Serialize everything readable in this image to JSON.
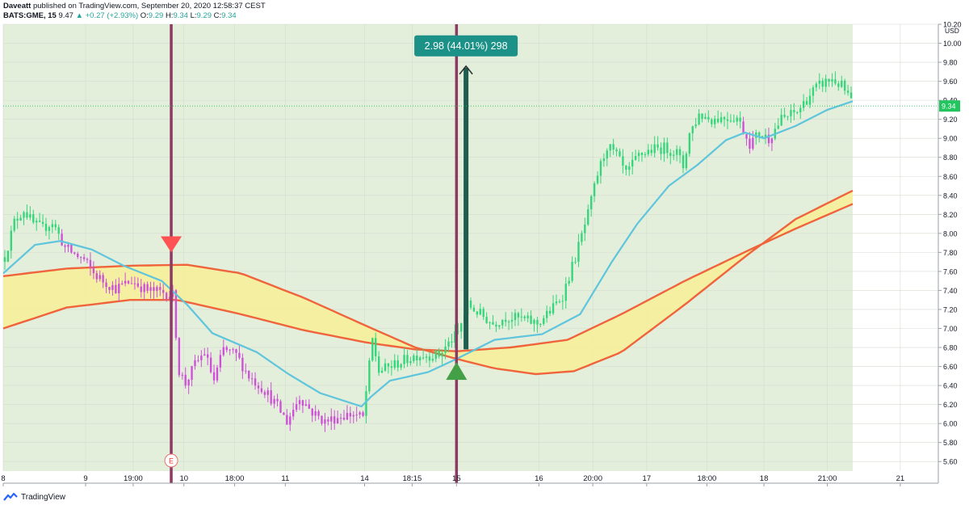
{
  "header": {
    "line1_user": "Daveatt",
    "line1_rest": "published on TradingView.com, September 20, 2020 12:58:37 CEST",
    "symbol": "BATS:GME, 15",
    "last": "9.47",
    "change": "▲ +0.27 (+2.93%)",
    "o_label": "O:",
    "o_value": "9.29",
    "h_label": "H:",
    "h_value": "9.34",
    "l_label": "L:",
    "l_value": "9.29",
    "c_label": "C:",
    "c_value": "9.34"
  },
  "footer": {
    "brand": "TradingView"
  },
  "colors": {
    "plot_bg": "#e3eedb",
    "band_fill": "#f6ee9b",
    "band_line": "#f0643c",
    "ema": "#5ec5dc",
    "bull": "#33d67a",
    "bear": "#cf4fd9",
    "vline": "#8b3a62",
    "sell_marker": "#ff5252",
    "buy_marker": "#43a047",
    "measure_bg": "#1b9187",
    "measure_arrow": "#1f5e4f",
    "price_tag": "#22c55e"
  },
  "chart_data": {
    "type": "candlestick",
    "title": "",
    "currency_label": "USD",
    "ylim": [
      5.5,
      10.2
    ],
    "y_ticks": [
      "10.20",
      "10.00",
      "9.80",
      "9.60",
      "9.40",
      "9.20",
      "9.00",
      "8.80",
      "8.60",
      "8.40",
      "8.20",
      "8.00",
      "7.80",
      "7.60",
      "7.40",
      "7.20",
      "7.00",
      "6.80",
      "6.60",
      "6.40",
      "6.20",
      "6.00",
      "5.80",
      "5.60"
    ],
    "x_ticks": [
      {
        "label": "8",
        "bar": 0
      },
      {
        "label": "9",
        "bar": 26
      },
      {
        "label": "19:00",
        "bar": 41
      },
      {
        "label": "10",
        "bar": 57
      },
      {
        "label": "18:00",
        "bar": 73
      },
      {
        "label": "11",
        "bar": 89
      },
      {
        "label": "14",
        "bar": 114
      },
      {
        "label": "18:15",
        "bar": 129
      },
      {
        "label": "15",
        "bar": 143
      },
      {
        "label": "16",
        "bar": 169
      },
      {
        "label": "20:00",
        "bar": 186
      },
      {
        "label": "17",
        "bar": 203
      },
      {
        "label": "18:00",
        "bar": 222
      },
      {
        "label": "18",
        "bar": 240
      },
      {
        "label": "21:00",
        "bar": 260
      },
      {
        "label": "21",
        "bar": 283
      }
    ],
    "bar_count": 268,
    "last_price": "9.34",
    "sell_signal": {
      "bar": 53,
      "price": 7.68,
      "line_label": "E"
    },
    "buy_signal": {
      "bar": 143,
      "price": 6.68
    },
    "measure": {
      "label": "2.98 (44.01%) 298",
      "from_bar": 146,
      "from_price": 6.78,
      "to_price": 9.76
    },
    "series": [
      {
        "name": "",
        "type": "ema",
        "points": [
          [
            0,
            7.58
          ],
          [
            10,
            7.88
          ],
          [
            18,
            7.92
          ],
          [
            28,
            7.83
          ],
          [
            38,
            7.66
          ],
          [
            50,
            7.5
          ],
          [
            58,
            7.25
          ],
          [
            66,
            6.95
          ],
          [
            80,
            6.75
          ],
          [
            90,
            6.52
          ],
          [
            100,
            6.32
          ],
          [
            113,
            6.18
          ],
          [
            116,
            6.28
          ],
          [
            122,
            6.45
          ],
          [
            134,
            6.54
          ],
          [
            143,
            6.68
          ],
          [
            155,
            6.88
          ],
          [
            170,
            6.94
          ],
          [
            182,
            7.15
          ],
          [
            192,
            7.7
          ],
          [
            200,
            8.1
          ],
          [
            210,
            8.5
          ],
          [
            219,
            8.72
          ],
          [
            228,
            8.98
          ],
          [
            234,
            9.06
          ],
          [
            240,
            9.0
          ],
          [
            250,
            9.13
          ],
          [
            260,
            9.3
          ],
          [
            268,
            9.39
          ]
        ]
      },
      {
        "name": "",
        "type": "band_upper",
        "points": [
          [
            0,
            7.55
          ],
          [
            20,
            7.63
          ],
          [
            40,
            7.66
          ],
          [
            58,
            7.67
          ],
          [
            75,
            7.58
          ],
          [
            95,
            7.32
          ],
          [
            115,
            7.02
          ],
          [
            130,
            6.8
          ],
          [
            143,
            6.68
          ],
          [
            155,
            6.58
          ],
          [
            168,
            6.52
          ],
          [
            180,
            6.55
          ],
          [
            195,
            6.75
          ],
          [
            215,
            7.25
          ],
          [
            235,
            7.78
          ],
          [
            250,
            8.15
          ],
          [
            268,
            8.45
          ]
        ]
      },
      {
        "name": "",
        "type": "band_lower",
        "points": [
          [
            0,
            7.0
          ],
          [
            20,
            7.22
          ],
          [
            40,
            7.3
          ],
          [
            55,
            7.3
          ],
          [
            75,
            7.15
          ],
          [
            95,
            6.98
          ],
          [
            115,
            6.85
          ],
          [
            130,
            6.78
          ],
          [
            143,
            6.76
          ],
          [
            160,
            6.8
          ],
          [
            178,
            6.88
          ],
          [
            195,
            7.15
          ],
          [
            215,
            7.5
          ],
          [
            235,
            7.82
          ],
          [
            250,
            8.05
          ],
          [
            268,
            8.31
          ]
        ]
      }
    ],
    "price_anchors": [
      [
        0,
        7.75
      ],
      [
        3,
        8.12
      ],
      [
        6,
        8.25
      ],
      [
        9,
        8.1
      ],
      [
        12,
        8.05
      ],
      [
        15,
        8.12
      ],
      [
        19,
        7.85
      ],
      [
        22,
        7.78
      ],
      [
        25,
        7.72
      ],
      [
        28,
        7.58
      ],
      [
        31,
        7.5
      ],
      [
        35,
        7.42
      ],
      [
        40,
        7.5
      ],
      [
        45,
        7.4
      ],
      [
        50,
        7.38
      ],
      [
        53,
        7.35
      ],
      [
        54,
        6.95
      ],
      [
        55,
        6.55
      ],
      [
        57,
        6.42
      ],
      [
        60,
        6.62
      ],
      [
        63,
        6.75
      ],
      [
        66,
        6.45
      ],
      [
        69,
        6.78
      ],
      [
        73,
        6.72
      ],
      [
        77,
        6.5
      ],
      [
        82,
        6.35
      ],
      [
        86,
        6.18
      ],
      [
        89,
        6.02
      ],
      [
        93,
        6.28
      ],
      [
        97,
        6.12
      ],
      [
        101,
        6.02
      ],
      [
        106,
        6.08
      ],
      [
        110,
        6.1
      ],
      [
        113,
        6.06
      ],
      [
        116,
        6.88
      ],
      [
        118,
        6.55
      ],
      [
        123,
        6.62
      ],
      [
        130,
        6.72
      ],
      [
        137,
        6.72
      ],
      [
        141,
        6.88
      ],
      [
        143,
        6.95
      ],
      [
        146,
        7.25
      ],
      [
        150,
        7.15
      ],
      [
        154,
        7.05
      ],
      [
        158,
        7.12
      ],
      [
        163,
        7.1
      ],
      [
        168,
        7.05
      ],
      [
        172,
        7.18
      ],
      [
        176,
        7.35
      ],
      [
        180,
        7.75
      ],
      [
        184,
        8.2
      ],
      [
        187,
        8.62
      ],
      [
        190,
        8.92
      ],
      [
        193,
        8.82
      ],
      [
        196,
        8.62
      ],
      [
        200,
        8.82
      ],
      [
        204,
        8.88
      ],
      [
        208,
        8.9
      ],
      [
        212,
        8.85
      ],
      [
        214,
        8.7
      ],
      [
        216,
        9.05
      ],
      [
        219,
        9.25
      ],
      [
        223,
        9.2
      ],
      [
        227,
        9.22
      ],
      [
        231,
        9.22
      ],
      [
        235,
        8.95
      ],
      [
        238,
        9.05
      ],
      [
        241,
        9.0
      ],
      [
        245,
        9.2
      ],
      [
        250,
        9.28
      ],
      [
        255,
        9.5
      ],
      [
        258,
        9.58
      ],
      [
        261,
        9.62
      ],
      [
        264,
        9.55
      ],
      [
        268,
        9.34
      ]
    ]
  }
}
